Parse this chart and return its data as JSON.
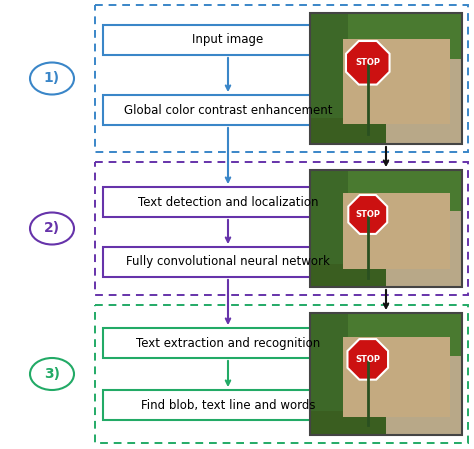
{
  "bg_color": "#ffffff",
  "s1_color": "#3a86c8",
  "s2_color": "#6633aa",
  "s3_color": "#22aa66",
  "s1_boxes": [
    "Input image",
    "Global color contrast enhancement"
  ],
  "s2_boxes": [
    "Text detection and localization",
    "Fully convolutional neural network"
  ],
  "s3_boxes": [
    "Text extraction and recognition",
    "Find blob, text line and words"
  ],
  "labels": [
    "1)",
    "2)",
    "3)"
  ],
  "font_size": 8.5,
  "right_arrow_color": "#111111",
  "fig_w": 4.74,
  "fig_h": 4.49,
  "dpi": 100
}
